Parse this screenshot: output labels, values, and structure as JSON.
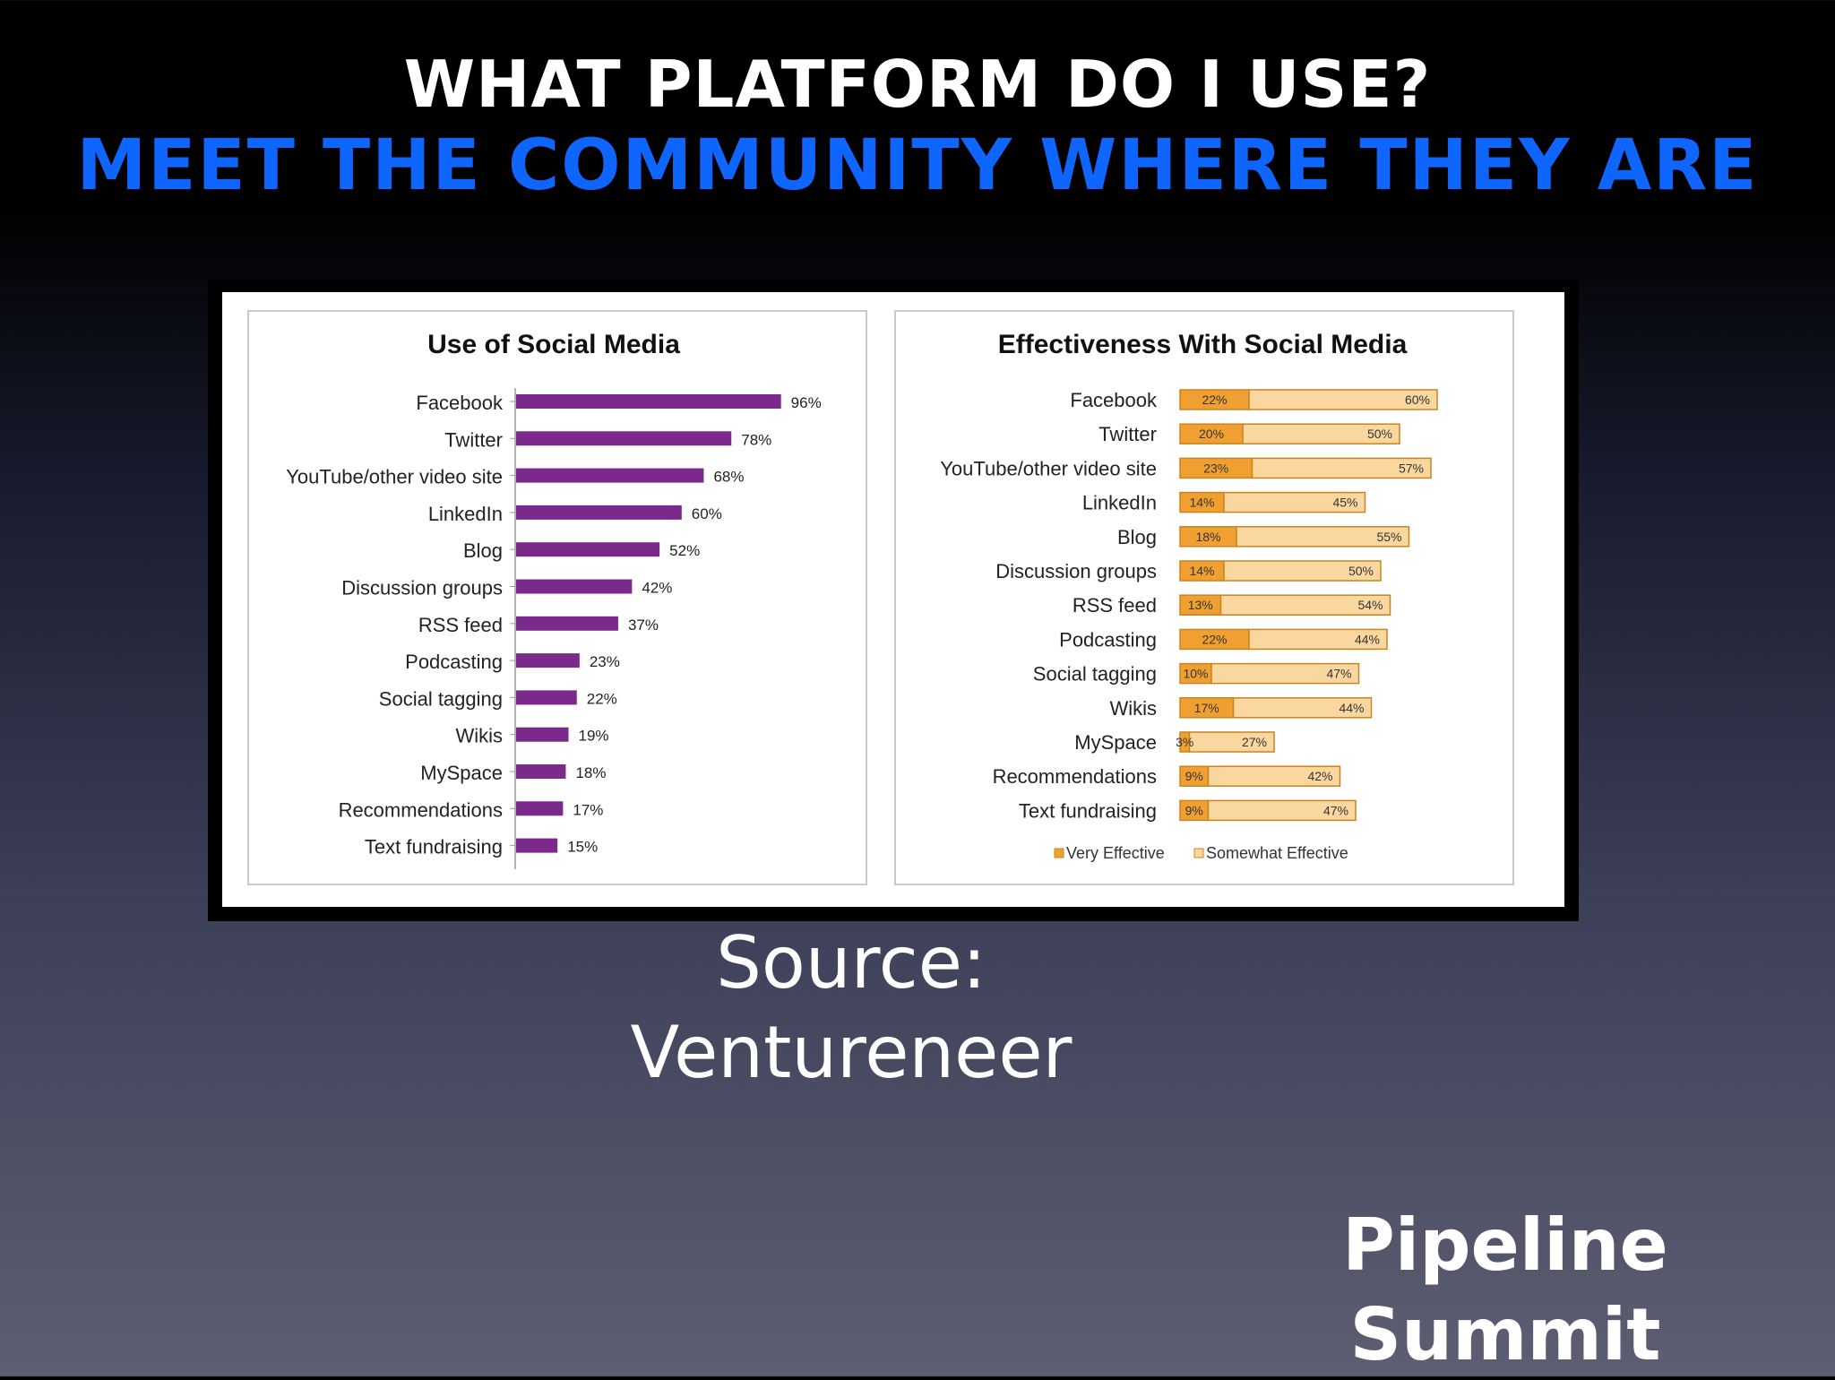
{
  "slide": {
    "title": "WHAT PLATFORM DO I USE?",
    "subtitle": "MEET THE COMMUNITY WHERE THEY ARE",
    "source_line1": "Source:",
    "source_line2": "Ventureneer",
    "brand_line1": "Pipeline",
    "brand_line2": "Summit"
  },
  "colors": {
    "title": "#ffffff",
    "subtitle": "#0f66ff",
    "usage_bar": "#7b2a8c",
    "very_effective": "#f0a030",
    "somewhat_effective": "#fbd7a0",
    "bar_outline": "#c88420"
  },
  "chart_data": [
    {
      "type": "bar",
      "orientation": "horizontal",
      "title": "Use of Social Media",
      "categories": [
        "Facebook",
        "Twitter",
        "YouTube/other video site",
        "LinkedIn",
        "Blog",
        "Discussion groups",
        "RSS feed",
        "Podcasting",
        "Social tagging",
        "Wikis",
        "MySpace",
        "Recommendations",
        "Text fundraising"
      ],
      "values": [
        96,
        78,
        68,
        60,
        52,
        42,
        37,
        23,
        22,
        19,
        18,
        17,
        15
      ],
      "value_labels": [
        "96%",
        "78%",
        "68%",
        "60%",
        "52%",
        "42%",
        "37%",
        "23%",
        "22%",
        "19%",
        "18%",
        "17%",
        "15%"
      ],
      "xlim": [
        0,
        100
      ],
      "grid": false,
      "legend": "none"
    },
    {
      "type": "bar",
      "orientation": "horizontal",
      "stacked": true,
      "title": "Effectiveness With Social Media",
      "categories": [
        "Facebook",
        "Twitter",
        "YouTube/other  video site",
        "LinkedIn",
        "Blog",
        "Discussion groups",
        "RSS feed",
        "Podcasting",
        "Social tagging",
        "Wikis",
        "MySpace",
        "Recommendations",
        "Text fundraising"
      ],
      "series": [
        {
          "name": "Very Effective",
          "values": [
            22,
            20,
            23,
            14,
            18,
            14,
            13,
            22,
            10,
            17,
            3,
            9,
            9
          ],
          "labels": [
            "22%",
            "20%",
            "23%",
            "14%",
            "18%",
            "14%",
            "13%",
            "22%",
            "10%",
            "17%",
            "3%",
            "9%",
            "9%"
          ]
        },
        {
          "name": "Somewhat Effective",
          "values": [
            60,
            50,
            57,
            45,
            55,
            50,
            54,
            44,
            47,
            44,
            27,
            42,
            47
          ],
          "labels": [
            "60%",
            "50%",
            "57%",
            "45%",
            "55%",
            "50%",
            "54%",
            "44%",
            "47%",
            "44%",
            "27%",
            "42%",
            "47%"
          ]
        }
      ],
      "xlim": [
        0,
        100
      ],
      "grid": false,
      "legend": "bottom"
    }
  ]
}
